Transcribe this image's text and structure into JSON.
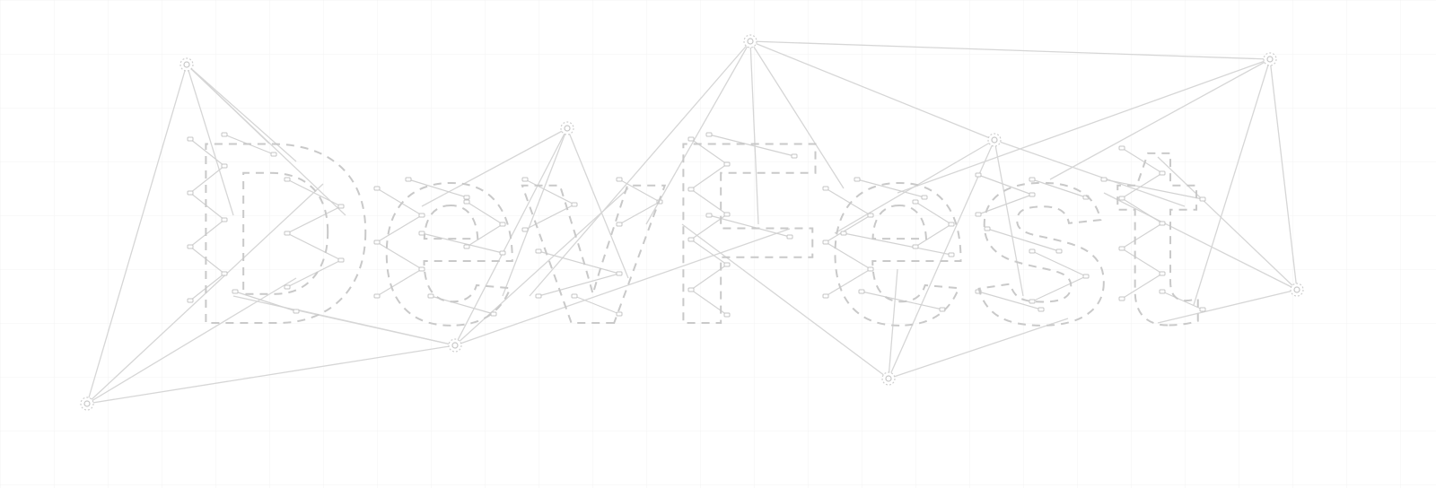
{
  "title": "DevFest"
}
